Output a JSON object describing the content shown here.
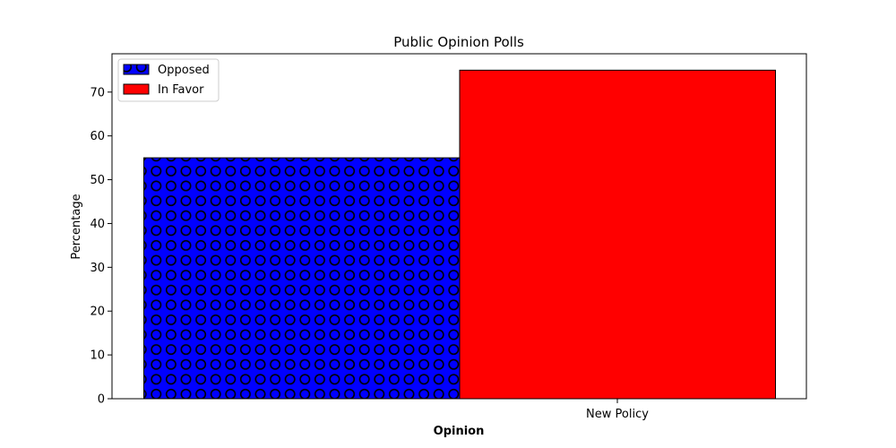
{
  "chart_data": {
    "type": "bar",
    "title": "Public Opinion Polls",
    "xlabel": "Opinion",
    "ylabel": "Percentage",
    "categories": [
      "New Policy"
    ],
    "ylim": [
      0,
      78.75
    ],
    "yticks": [
      0,
      10,
      20,
      30,
      40,
      50,
      60,
      70
    ],
    "grid": false,
    "legend_position": "upper-left",
    "series": [
      {
        "name": "Opposed",
        "values": [
          55
        ],
        "color": "#0000ff",
        "pattern": "circles"
      },
      {
        "name": "In Favor",
        "values": [
          75
        ],
        "color": "#ff0000",
        "pattern": "none"
      }
    ]
  }
}
